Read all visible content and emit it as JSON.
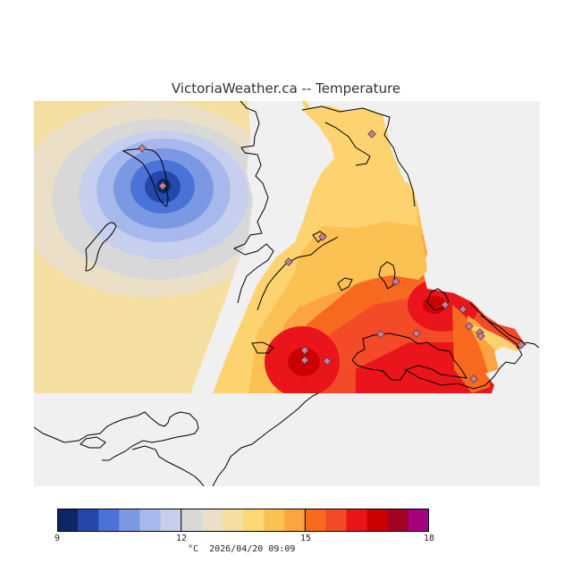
{
  "title": "VictoriaWeather.ca -- Temperature",
  "colorbar": {
    "min": 9,
    "max": 18,
    "colors": [
      "#0d2668",
      "#2448aa",
      "#4a72d8",
      "#7b99e3",
      "#a7b9ec",
      "#c6cfee",
      "#d8d8d8",
      "#ebdfc7",
      "#f5dfa0",
      "#fed877",
      "#fcc153",
      "#fba441",
      "#f6691f",
      "#f34a27",
      "#e9151b",
      "#cc0000",
      "#a10321",
      "#a6017e"
    ],
    "tick_labels": [
      "9",
      "12",
      "15",
      "18"
    ]
  },
  "units": "°C",
  "timestamp": "2026/04/20 09:09"
}
